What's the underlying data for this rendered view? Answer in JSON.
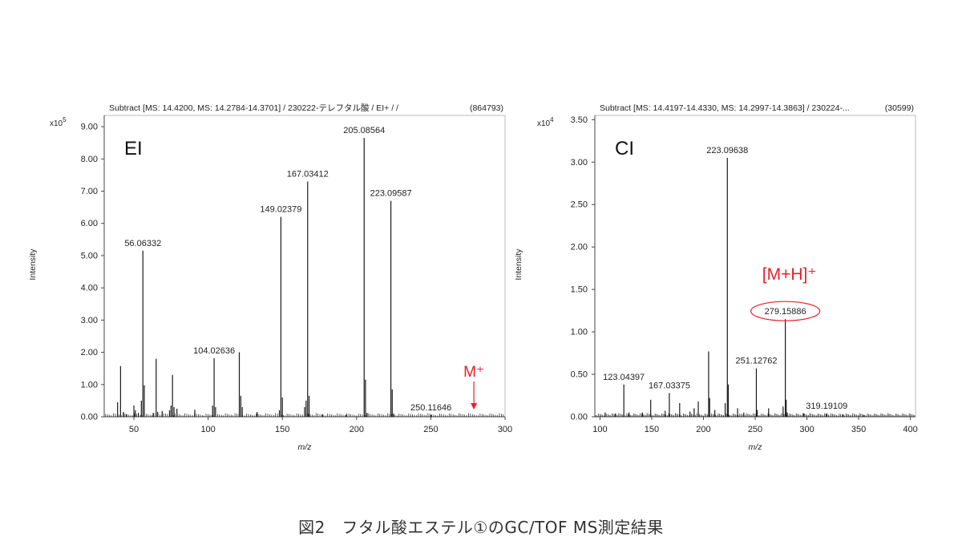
{
  "figure_caption": "図2　フタル酸エステル①のGC/TOF MS測定結果",
  "colors": {
    "trace": "#1a1a1a",
    "axis": "#444444",
    "highlight": "#e8202a"
  },
  "chart_data": [
    {
      "type": "bar",
      "header": "Subtract [MS: 14.4200, MS: 14.2784-14.3701] / 230222-テレフタル酸 / EI+ /  /",
      "total_intensity": "(864793)",
      "panel_label": "EI",
      "multiplier": "x10",
      "multiplier_exp": "5",
      "xlabel": "m/z",
      "ylabel": "Intensity",
      "xlim": [
        30,
        300
      ],
      "ylim": [
        0,
        9.35
      ],
      "xticks": [
        50,
        100,
        150,
        200,
        250,
        300
      ],
      "yticks": [
        0,
        1,
        2,
        3,
        4,
        5,
        6,
        7,
        8,
        9
      ],
      "ytick_labels": [
        "0.00",
        "1.00",
        "2.00",
        "3.00",
        "4.00",
        "5.00",
        "6.00",
        "7.00",
        "8.00",
        "9.00"
      ],
      "peaks": [
        {
          "mz": 39,
          "i": 0.45
        },
        {
          "mz": 41,
          "i": 1.57
        },
        {
          "mz": 43,
          "i": 0.15
        },
        {
          "mz": 45,
          "i": 0.08
        },
        {
          "mz": 50,
          "i": 0.35
        },
        {
          "mz": 51,
          "i": 0.2
        },
        {
          "mz": 53,
          "i": 0.12
        },
        {
          "mz": 55,
          "i": 0.5
        },
        {
          "mz": 56.06,
          "i": 5.15
        },
        {
          "mz": 57,
          "i": 0.98
        },
        {
          "mz": 63,
          "i": 0.12
        },
        {
          "mz": 65,
          "i": 1.8
        },
        {
          "mz": 66,
          "i": 0.15
        },
        {
          "mz": 69,
          "i": 0.18
        },
        {
          "mz": 74,
          "i": 0.2
        },
        {
          "mz": 75,
          "i": 0.35
        },
        {
          "mz": 76,
          "i": 1.3
        },
        {
          "mz": 77,
          "i": 0.3
        },
        {
          "mz": 79,
          "i": 0.25
        },
        {
          "mz": 91,
          "i": 0.22
        },
        {
          "mz": 103,
          "i": 0.35
        },
        {
          "mz": 104.03,
          "i": 1.82
        },
        {
          "mz": 105,
          "i": 0.3
        },
        {
          "mz": 121,
          "i": 2.0
        },
        {
          "mz": 122,
          "i": 0.65
        },
        {
          "mz": 123,
          "i": 0.3
        },
        {
          "mz": 133,
          "i": 0.15
        },
        {
          "mz": 148,
          "i": 0.2
        },
        {
          "mz": 149.02,
          "i": 6.2
        },
        {
          "mz": 150,
          "i": 0.6
        },
        {
          "mz": 165,
          "i": 0.3
        },
        {
          "mz": 166,
          "i": 0.5
        },
        {
          "mz": 167.03,
          "i": 7.3
        },
        {
          "mz": 168,
          "i": 0.65
        },
        {
          "mz": 177,
          "i": 0.08
        },
        {
          "mz": 193,
          "i": 0.06
        },
        {
          "mz": 205.09,
          "i": 8.65
        },
        {
          "mz": 206,
          "i": 1.15
        },
        {
          "mz": 207,
          "i": 0.12
        },
        {
          "mz": 223.1,
          "i": 6.7
        },
        {
          "mz": 224,
          "i": 0.85
        },
        {
          "mz": 225,
          "i": 0.1
        },
        {
          "mz": 250.12,
          "i": 0.05
        }
      ],
      "labels": [
        {
          "text": "56.06332",
          "mz": 56.06,
          "i": 5.15
        },
        {
          "text": "104.02636",
          "mz": 104.03,
          "i": 1.82
        },
        {
          "text": "149.02379",
          "mz": 149.02,
          "i": 6.2
        },
        {
          "text": "167.03412",
          "mz": 167.03,
          "i": 7.3
        },
        {
          "text": "205.08564",
          "mz": 205.09,
          "i": 8.65
        },
        {
          "text": "223.09587",
          "mz": 223.1,
          "i": 6.7
        },
        {
          "text": "250.11646",
          "mz": 250.12,
          "i": 0.05
        }
      ],
      "annotation": {
        "text": "M⁺",
        "mz": 279,
        "i": 0.0
      }
    },
    {
      "type": "bar",
      "header": "Subtract [MS: 14.4197-14.4330, MS: 14.2997-14.3863] / 230224-...",
      "total_intensity": "(30599)",
      "panel_label": "CI",
      "multiplier": "x10",
      "multiplier_exp": "4",
      "xlabel": "m/z",
      "ylabel": "Intensity",
      "xlim": [
        95,
        405
      ],
      "ylim": [
        0,
        3.55
      ],
      "xticks": [
        100,
        150,
        200,
        250,
        300,
        350,
        400
      ],
      "yticks": [
        0,
        0.5,
        1,
        1.5,
        2,
        2.5,
        3,
        3.5
      ],
      "ytick_labels": [
        "0.00",
        "0.50",
        "1.00",
        "1.50",
        "2.00",
        "2.50",
        "3.00",
        "3.50"
      ],
      "peaks": [
        {
          "mz": 105,
          "i": 0.05
        },
        {
          "mz": 115,
          "i": 0.04
        },
        {
          "mz": 123.04,
          "i": 0.38
        },
        {
          "mz": 128,
          "i": 0.05
        },
        {
          "mz": 141,
          "i": 0.05
        },
        {
          "mz": 149,
          "i": 0.2
        },
        {
          "mz": 163,
          "i": 0.07
        },
        {
          "mz": 167.03,
          "i": 0.28
        },
        {
          "mz": 177,
          "i": 0.16
        },
        {
          "mz": 187,
          "i": 0.06
        },
        {
          "mz": 191,
          "i": 0.1
        },
        {
          "mz": 195,
          "i": 0.18
        },
        {
          "mz": 205,
          "i": 0.77
        },
        {
          "mz": 206,
          "i": 0.22
        },
        {
          "mz": 211,
          "i": 0.08
        },
        {
          "mz": 221,
          "i": 0.16
        },
        {
          "mz": 223.1,
          "i": 3.05
        },
        {
          "mz": 224,
          "i": 0.38
        },
        {
          "mz": 233,
          "i": 0.1
        },
        {
          "mz": 239,
          "i": 0.05
        },
        {
          "mz": 251.13,
          "i": 0.57
        },
        {
          "mz": 252,
          "i": 0.08
        },
        {
          "mz": 263,
          "i": 0.1
        },
        {
          "mz": 277,
          "i": 0.12
        },
        {
          "mz": 279.16,
          "i": 1.15
        },
        {
          "mz": 280,
          "i": 0.2
        },
        {
          "mz": 281,
          "i": 0.05
        },
        {
          "mz": 297,
          "i": 0.04
        },
        {
          "mz": 319.19,
          "i": 0.04
        },
        {
          "mz": 335,
          "i": 0.03
        },
        {
          "mz": 355,
          "i": 0.02
        }
      ],
      "labels": [
        {
          "text": "123.04397",
          "mz": 123.04,
          "i": 0.38
        },
        {
          "text": "167.03375",
          "mz": 167.03,
          "i": 0.28
        },
        {
          "text": "223.09638",
          "mz": 223.1,
          "i": 3.05
        },
        {
          "text": "251.12762",
          "mz": 251.13,
          "i": 0.57
        },
        {
          "text": "279.15886",
          "mz": 279.16,
          "i": 1.15,
          "circled": true
        },
        {
          "text": "319.19109",
          "mz": 319.19,
          "i": 0.04
        }
      ],
      "annotation": {
        "text": "[M+H]⁺",
        "mz": 279.16,
        "i": 1.15
      }
    }
  ]
}
